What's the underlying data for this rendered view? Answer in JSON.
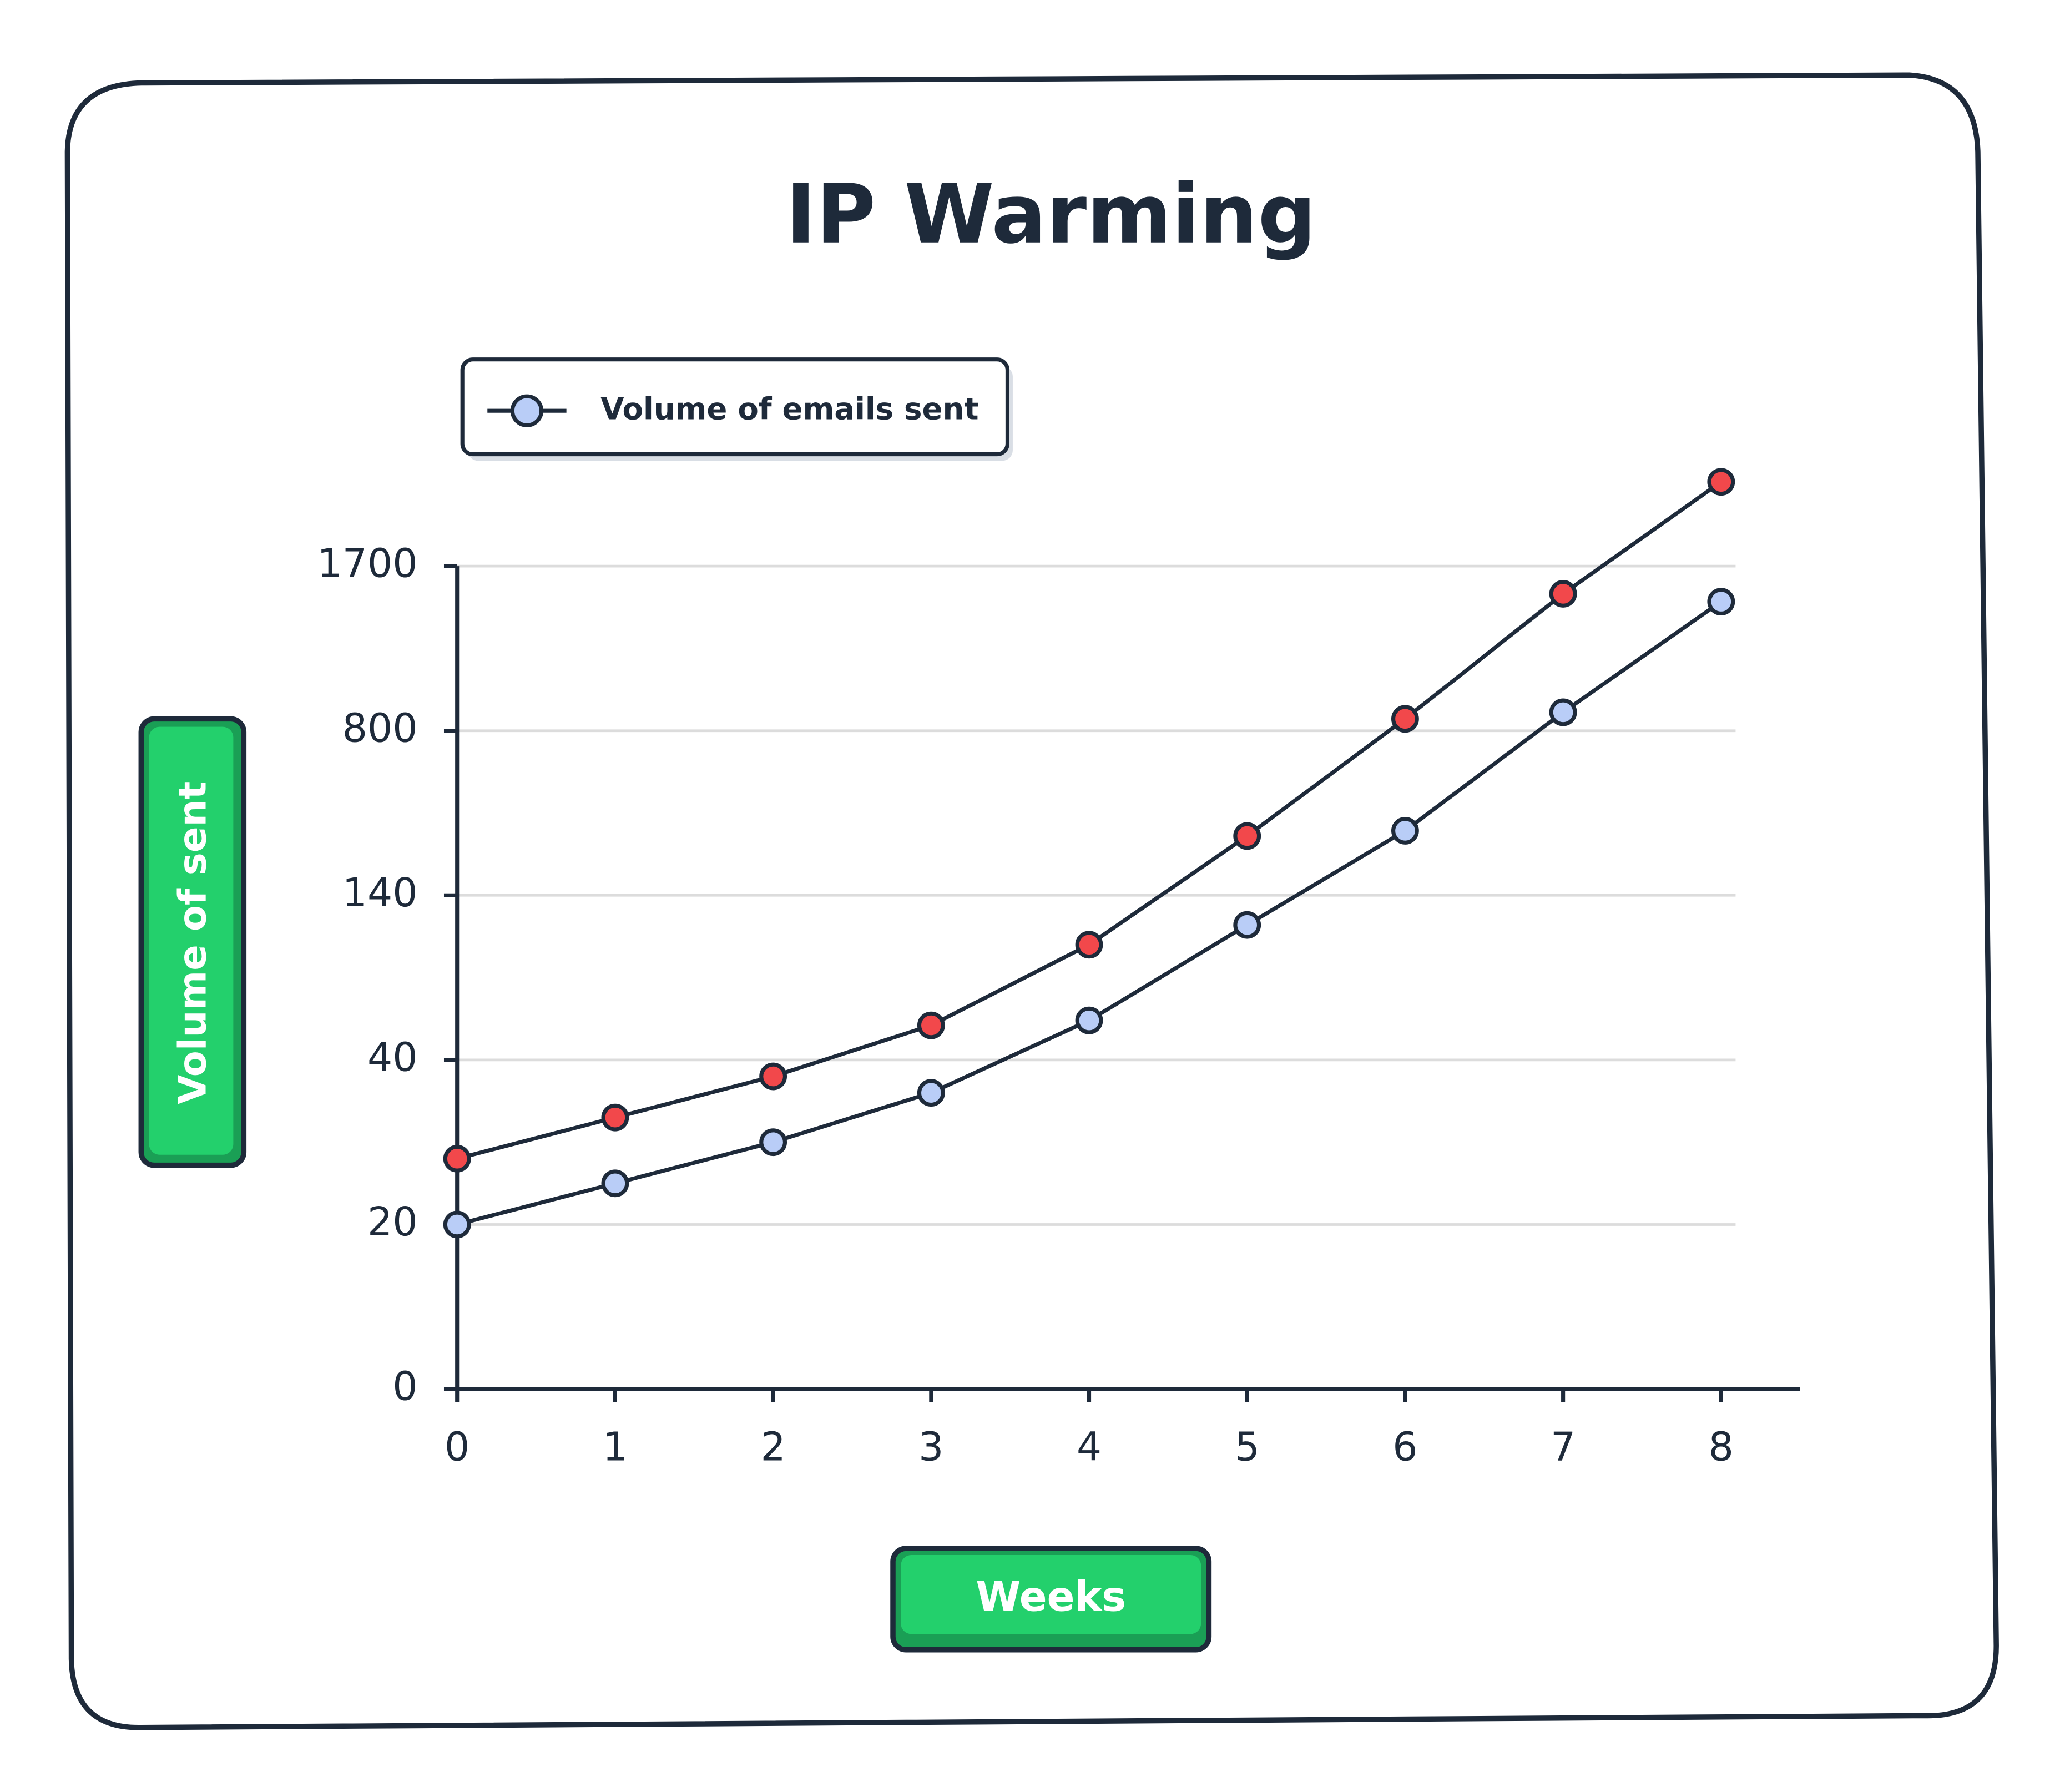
{
  "chart_data": {
    "type": "line",
    "title": "IP Warming",
    "x": [
      0,
      1,
      2,
      3,
      4,
      5,
      6,
      7,
      8
    ],
    "series": [
      {
        "name": "Volume of emails sent",
        "color": "#b9cdf7",
        "values": [
          20,
          25,
          30,
          36,
          64,
          122,
          399,
          901,
          1506
        ]
      },
      {
        "color": "#f2484b",
        "values": [
          28,
          33,
          38,
          61,
          110,
          378,
          865,
          1549,
          2161
        ]
      }
    ],
    "xlabel": "Weeks",
    "ylabel": "Volume of sent",
    "xlim": [
      0,
      8.5
    ],
    "xticks": [
      0,
      1,
      2,
      3,
      4,
      5,
      6,
      7,
      8
    ],
    "ylim": [
      0,
      1700
    ],
    "yticks": [
      0,
      20,
      40,
      140,
      800,
      1700
    ],
    "grid": true,
    "legend": "top-left"
  }
}
